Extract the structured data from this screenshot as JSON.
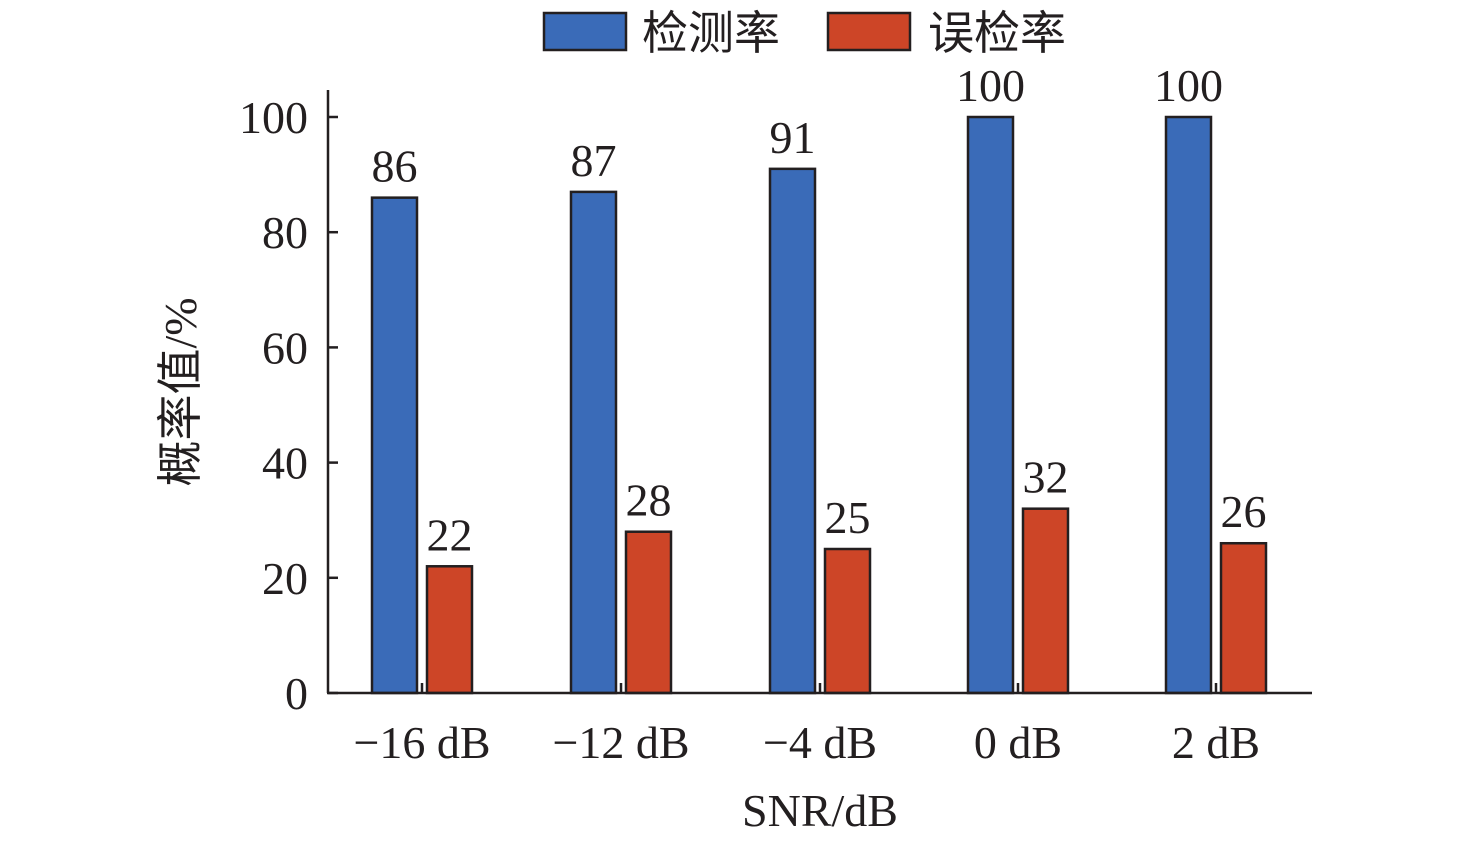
{
  "chart_data": {
    "type": "bar",
    "categories": [
      "−16 dB",
      "−12 dB",
      "−4 dB",
      "0 dB",
      "2 dB"
    ],
    "series": [
      {
        "name": "检测率",
        "values": [
          86,
          87,
          91,
          100,
          100
        ],
        "labels": [
          "86",
          "87",
          "91",
          "100",
          "100"
        ],
        "color": "#3a6bb8"
      },
      {
        "name": "误检率",
        "values": [
          22,
          28,
          25,
          32,
          26
        ],
        "labels": [
          "22",
          "28",
          "25",
          "32",
          "26"
        ],
        "color": "#cd4527"
      }
    ],
    "xlabel": "SNR/dB",
    "ylabel": "概率值/%",
    "ylim": [
      0,
      100
    ],
    "yticks": [
      0,
      20,
      40,
      60,
      80,
      100
    ],
    "ytick_labels": [
      "0",
      "20",
      "40",
      "60",
      "80",
      "100"
    ],
    "grid": false,
    "legend_position": "top-center",
    "axis_color": "#231f20"
  }
}
